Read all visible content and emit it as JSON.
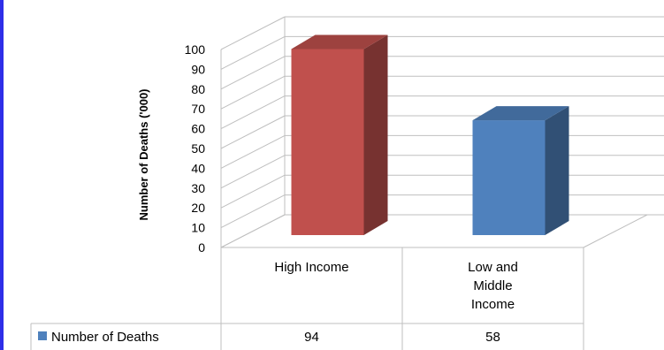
{
  "chart_data": {
    "type": "bar",
    "categories": [
      "High Income",
      "Low and Middle Income"
    ],
    "category_lines": [
      [
        "High Income"
      ],
      [
        "Low and",
        "Middle",
        "Income"
      ]
    ],
    "series": [
      {
        "name": "Number of Deaths",
        "values": [
          94,
          58
        ],
        "colors": [
          "#c0504d",
          "#4f81bd"
        ]
      }
    ],
    "title": "",
    "xlabel": "",
    "ylabel": "Number of Deaths  ('000)",
    "ylim": [
      0,
      100
    ],
    "yticks": [
      0,
      10,
      20,
      30,
      40,
      50,
      60,
      70,
      80,
      90,
      100
    ],
    "grid": true,
    "style": "3d",
    "data_table": true,
    "legend": "data-table"
  },
  "colors": {
    "border": "#2e2ee8",
    "grid": "#bfbfbf",
    "legend_key": "#4f81bd"
  }
}
